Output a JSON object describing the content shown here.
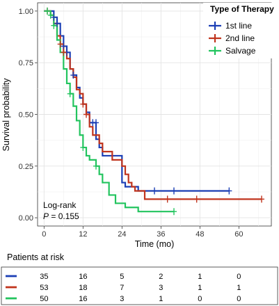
{
  "chart_data": {
    "type": "line",
    "subtype": "kaplan-meier",
    "ylabel": "Survival probability",
    "xlabel": "Time (mo)",
    "xlim": [
      -2,
      70
    ],
    "ylim": [
      -0.04,
      1.04
    ],
    "x_ticks": [
      0,
      12,
      24,
      36,
      48,
      60
    ],
    "y_ticks": [
      0.0,
      0.25,
      0.5,
      0.75,
      1.0
    ],
    "y_tick_labels": [
      "0.00",
      "0.25",
      "0.50",
      "0.75",
      "1.00"
    ],
    "grid": true,
    "legend": {
      "title": "Type of Therapy",
      "position": "top-right"
    },
    "annotation": {
      "line1": "Log-rank",
      "p_symbol": "P",
      "p_rest": " = 0.155"
    },
    "series": [
      {
        "name": "1st line",
        "color": "#1b3fb5",
        "steps": [
          [
            0,
            1.0
          ],
          [
            3,
            0.97
          ],
          [
            4,
            0.94
          ],
          [
            5,
            0.88
          ],
          [
            6,
            0.83
          ],
          [
            7,
            0.8
          ],
          [
            8,
            0.72
          ],
          [
            9,
            0.69
          ],
          [
            10,
            0.63
          ],
          [
            11,
            0.58
          ],
          [
            12,
            0.55
          ],
          [
            13,
            0.51
          ],
          [
            14,
            0.46
          ],
          [
            16,
            0.38
          ],
          [
            17,
            0.34
          ],
          [
            18,
            0.3
          ],
          [
            24,
            0.17
          ],
          [
            25,
            0.15
          ],
          [
            29,
            0.13
          ],
          [
            57,
            0.13
          ]
        ],
        "censors": [
          [
            3,
            0.97
          ],
          [
            4,
            0.94
          ],
          [
            6,
            0.83
          ],
          [
            7,
            0.8
          ],
          [
            9,
            0.69
          ],
          [
            15,
            0.46
          ],
          [
            16,
            0.46
          ],
          [
            34,
            0.13
          ],
          [
            40,
            0.13
          ],
          [
            57,
            0.13
          ]
        ]
      },
      {
        "name": "2nd line",
        "color": "#c0341d",
        "steps": [
          [
            0,
            1.0
          ],
          [
            2,
            0.98
          ],
          [
            3,
            0.94
          ],
          [
            4,
            0.88
          ],
          [
            5,
            0.84
          ],
          [
            6,
            0.8
          ],
          [
            7,
            0.77
          ],
          [
            8,
            0.72
          ],
          [
            9,
            0.68
          ],
          [
            10,
            0.62
          ],
          [
            11,
            0.6
          ],
          [
            12,
            0.55
          ],
          [
            13,
            0.5
          ],
          [
            14,
            0.44
          ],
          [
            15,
            0.4
          ],
          [
            17,
            0.36
          ],
          [
            18,
            0.32
          ],
          [
            21,
            0.28
          ],
          [
            24,
            0.25
          ],
          [
            25,
            0.21
          ],
          [
            26,
            0.17
          ],
          [
            27,
            0.15
          ],
          [
            28,
            0.13
          ],
          [
            31,
            0.09
          ],
          [
            67,
            0.09
          ]
        ],
        "censors": [
          [
            1,
            1.0
          ],
          [
            5,
            0.84
          ],
          [
            6,
            0.8
          ],
          [
            12,
            0.55
          ],
          [
            13,
            0.5
          ],
          [
            38,
            0.09
          ],
          [
            47,
            0.09
          ],
          [
            67,
            0.09
          ]
        ]
      },
      {
        "name": "Salvage",
        "color": "#22c45e",
        "steps": [
          [
            0,
            1.0
          ],
          [
            2,
            0.98
          ],
          [
            3,
            0.93
          ],
          [
            4,
            0.86
          ],
          [
            5,
            0.8
          ],
          [
            6,
            0.72
          ],
          [
            7,
            0.65
          ],
          [
            8,
            0.6
          ],
          [
            9,
            0.54
          ],
          [
            10,
            0.47
          ],
          [
            11,
            0.4
          ],
          [
            12,
            0.34
          ],
          [
            13,
            0.3
          ],
          [
            14,
            0.28
          ],
          [
            16,
            0.25
          ],
          [
            17,
            0.21
          ],
          [
            18,
            0.17
          ],
          [
            20,
            0.11
          ],
          [
            22,
            0.07
          ],
          [
            25,
            0.05
          ],
          [
            29,
            0.03
          ],
          [
            40,
            0.03
          ]
        ],
        "censors": [
          [
            1,
            1.0
          ],
          [
            2,
            0.98
          ],
          [
            3,
            0.93
          ],
          [
            8,
            0.6
          ],
          [
            12,
            0.34
          ],
          [
            16,
            0.25
          ],
          [
            40,
            0.03
          ]
        ]
      }
    ]
  },
  "risk_table": {
    "title": "Patients at risk",
    "rows": [
      {
        "color": "#1b3fb5",
        "values": [
          "35",
          "16",
          "5",
          "2",
          "1",
          "0"
        ]
      },
      {
        "color": "#c0341d",
        "values": [
          "53",
          "18",
          "7",
          "3",
          "1",
          "1"
        ]
      },
      {
        "color": "#22c45e",
        "values": [
          "50",
          "16",
          "3",
          "1",
          "0",
          "0"
        ]
      }
    ]
  }
}
